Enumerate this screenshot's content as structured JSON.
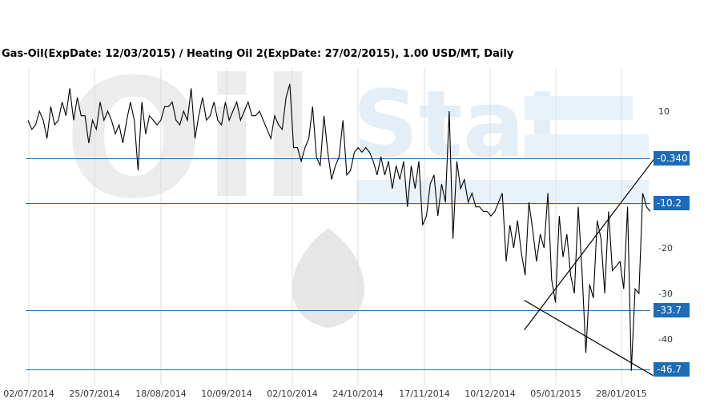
{
  "chart_data": {
    "type": "line",
    "title": "Gas-Oil(ExpDate: 12/03/2015) / Heating Oil 2(ExpDate: 27/02/2015), 1.00 USD/MT, Daily",
    "xlabel": "",
    "ylabel": "",
    "ylim": [
      -49,
      20
    ],
    "grid": "vertical gridlines at x tick labels",
    "x_ticks": [
      "02/07/2014",
      "25/07/2014",
      "18/08/2014",
      "10/09/2014",
      "02/10/2014",
      "24/10/2014",
      "17/11/2014",
      "10/12/2014",
      "05/01/2015",
      "28/01/2015"
    ],
    "y_ticks": [
      10,
      -20,
      -30,
      -40
    ],
    "series": [
      {
        "values": [
          8,
          6,
          7,
          10,
          8,
          4,
          11,
          7,
          8,
          12,
          9,
          15,
          8,
          13,
          9,
          9,
          3,
          8,
          6,
          12,
          8,
          10,
          8,
          5,
          7,
          3,
          8,
          12,
          8,
          -3,
          12,
          5,
          9,
          8,
          7,
          8,
          11,
          11,
          12,
          8,
          7,
          10,
          8,
          15,
          4,
          9,
          13,
          8,
          9,
          12,
          8,
          7,
          12,
          8,
          10,
          12,
          8,
          10,
          12,
          9,
          9,
          10,
          8,
          6,
          4,
          9,
          7,
          6,
          13,
          16,
          2,
          2,
          -1,
          2,
          4,
          11,
          0,
          -2,
          9,
          1,
          -5,
          -2,
          0,
          8,
          -4,
          -3,
          1,
          2,
          1,
          2,
          1,
          -1,
          -4,
          0,
          -4,
          -1,
          -7,
          -2,
          -5,
          -1,
          -11,
          -2,
          -7,
          -1,
          -15,
          -13,
          -6,
          -4,
          -13,
          -6,
          -10,
          10,
          -18,
          -1,
          -7,
          -5,
          -10,
          -8,
          -11,
          -11,
          -12,
          -12,
          -13,
          -12,
          -10,
          -8,
          -23,
          -15,
          -20,
          -14,
          -21,
          -26,
          -10,
          -16,
          -23,
          -17,
          -20,
          -8,
          -27,
          -32,
          -13,
          -22,
          -17,
          -26,
          -30,
          -11,
          -25,
          -43,
          -28,
          -31,
          -14,
          -18,
          -30,
          -12,
          -25,
          -24,
          -23,
          -29,
          -11,
          -47,
          -29,
          -30,
          -8,
          -11,
          -12
        ],
        "color": "#000000"
      }
    ],
    "levels": [
      {
        "value": -0.34,
        "label": "-0.340"
      },
      {
        "value": -10.2,
        "label": "-10.2"
      },
      {
        "value": -33.7,
        "label": "-33.7"
      },
      {
        "value": -46.7,
        "label": "-46.7"
      }
    ],
    "trendlines": [
      {
        "from": {
          "x": "26/12/2014",
          "y": -38
        },
        "to": {
          "x": "12/02/2015",
          "y": 0.8
        }
      },
      {
        "from": {
          "x": "26/12/2014",
          "y": -31.5
        },
        "to": {
          "x": "10/02/2015",
          "y": -48
        }
      }
    ],
    "watermark": "OilStat",
    "colors": {
      "level_line": "#1c6cb7",
      "level_label_bg": "#1c6cb7",
      "series": "#000000",
      "grid": "#dddddd"
    }
  }
}
